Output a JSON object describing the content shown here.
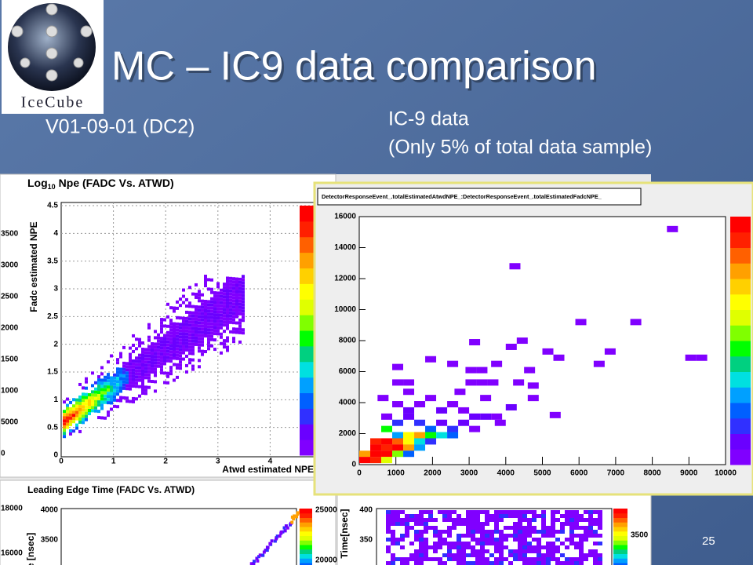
{
  "logo": {
    "text": "IceCube"
  },
  "title": "MC – IC9 data comparison",
  "left_caption": "V01-09-01 (DC2)",
  "right_caption": [
    "IC-9 data",
    "(Only 5% of total data sample)"
  ],
  "slide_number": "25",
  "mc_npe_plot": {
    "title": {
      "prefix": "Log",
      "subscript": "10",
      "rest": "Npe (FADC Vs. ATWD)"
    },
    "y_label": "Fadc estimated NPE",
    "x_label": "Atwd estimated NPE",
    "yticks": [
      "0",
      "0.5",
      "1",
      "1.5",
      "2",
      "2.5",
      "3",
      "3.5",
      "4",
      "4.5"
    ],
    "xticks": [
      "0",
      "1",
      "2",
      "3",
      "4"
    ],
    "side_ticks": [
      "3500",
      "3000",
      "2500",
      "2000",
      "1500",
      "1000",
      "5000",
      "0"
    ]
  },
  "mc_time_plot": {
    "title": "Leading Edge Time (FADC Vs. ATWD)",
    "y_label": "Time [nsec]",
    "yticks": [
      "4000",
      "3500"
    ],
    "colorbar_ticks": [
      "25000",
      "20000"
    ],
    "side_ticks": [
      "18000",
      "16000"
    ]
  },
  "data_time_plot": {
    "y_label": "Time[nsec]",
    "yticks": [
      "400",
      "350"
    ],
    "colorbar_ticks": [
      "3500"
    ]
  },
  "data_npe_plot": {
    "title": "DetectorResponseEvent_.totalEstimatedAtwdNPE_:DetectorResponseEvent_.totalEstimatedFadcNPE_",
    "yticks": [
      "0",
      "2000",
      "4000",
      "6000",
      "8000",
      "10000",
      "12000",
      "14000",
      "16000"
    ],
    "xticks": [
      "0",
      "1000",
      "2000",
      "3000",
      "4000",
      "5000",
      "6000",
      "7000",
      "8000",
      "9000",
      "10000"
    ]
  }
}
